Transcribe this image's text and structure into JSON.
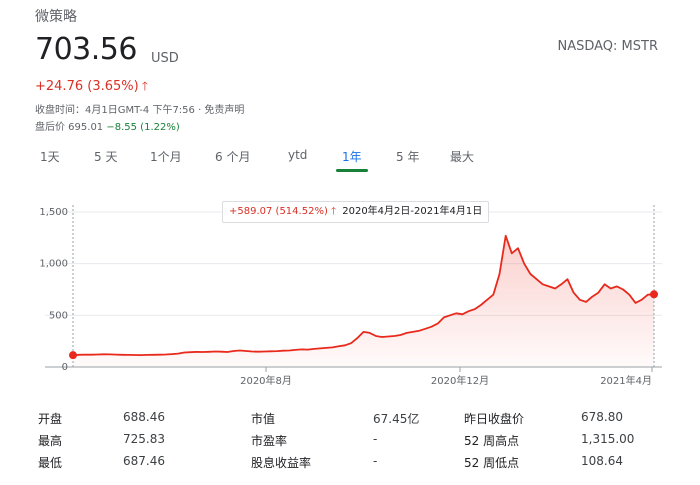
{
  "header": {
    "company": "微策略",
    "price": "703.56",
    "currency": "USD",
    "exchange": "NASDAQ: MSTR",
    "change": "+24.76 (3.65%)",
    "change_arrow": "🡑",
    "close_time": "收盘时间：4月1日GMT-4 下午7:56 · 免责声明",
    "after_hours_label": "盘后价 695.01 ",
    "after_hours_change": "−8.55 (1.22%)"
  },
  "tabs": [
    {
      "label": "1天",
      "active": false
    },
    {
      "label": "5 天",
      "active": false
    },
    {
      "label": "1个月",
      "active": false
    },
    {
      "label": "6 个月",
      "active": false
    },
    {
      "label": "ytd",
      "active": false
    },
    {
      "label": "1年",
      "active": true
    },
    {
      "label": "5 年",
      "active": false
    },
    {
      "label": "最大",
      "active": false
    }
  ],
  "tooltip": {
    "change": "+589.07 (514.52%) 🡑",
    "range": "2020年4月2日-2021年4月1日"
  },
  "colors": {
    "line": "#e8291c",
    "negative": "#188038",
    "accent": "#1a73e8"
  },
  "chart_data": {
    "type": "area",
    "y_ticks": [
      "1,500",
      "1,000",
      "500",
      "0"
    ],
    "x_ticks": [
      "2020年8月",
      "2020年12月",
      "2021年4月"
    ],
    "ylim": [
      0,
      1500
    ],
    "grid": true,
    "start_value": 114.49,
    "end_value": 703.56,
    "series": [
      {
        "values": [
          114.49,
          118,
          120,
          119,
          121,
          123,
          122,
          120,
          118,
          117,
          116,
          115,
          117,
          118,
          119,
          121,
          125,
          130,
          140,
          143,
          146,
          145,
          147,
          150,
          148,
          145,
          155,
          160,
          155,
          150,
          148,
          150,
          152,
          154,
          158,
          160,
          165,
          170,
          168,
          175,
          180,
          185,
          190,
          200,
          210,
          230,
          280,
          340,
          330,
          300,
          290,
          295,
          300,
          310,
          330,
          340,
          350,
          370,
          390,
          420,
          480,
          500,
          520,
          510,
          540,
          560,
          600,
          650,
          700,
          900,
          1270,
          1100,
          1150,
          1000,
          900,
          850,
          800,
          780,
          760,
          800,
          850,
          720,
          650,
          630,
          680,
          720,
          800,
          760,
          780,
          750,
          700,
          620,
          650,
          700,
          703.56
        ]
      }
    ]
  },
  "stats": [
    {
      "label": "开盘",
      "value": "688.46"
    },
    {
      "label": "最高",
      "value": "725.83"
    },
    {
      "label": "最低",
      "value": "687.46"
    },
    {
      "label": "市值",
      "value": "67.45亿"
    },
    {
      "label": "市盈率",
      "value": "-"
    },
    {
      "label": "股息收益率",
      "value": "-"
    },
    {
      "label": "昨日收盘价",
      "value": "678.80"
    },
    {
      "label": "52 周高点",
      "value": "1,315.00"
    },
    {
      "label": "52 周低点",
      "value": "108.64"
    }
  ]
}
